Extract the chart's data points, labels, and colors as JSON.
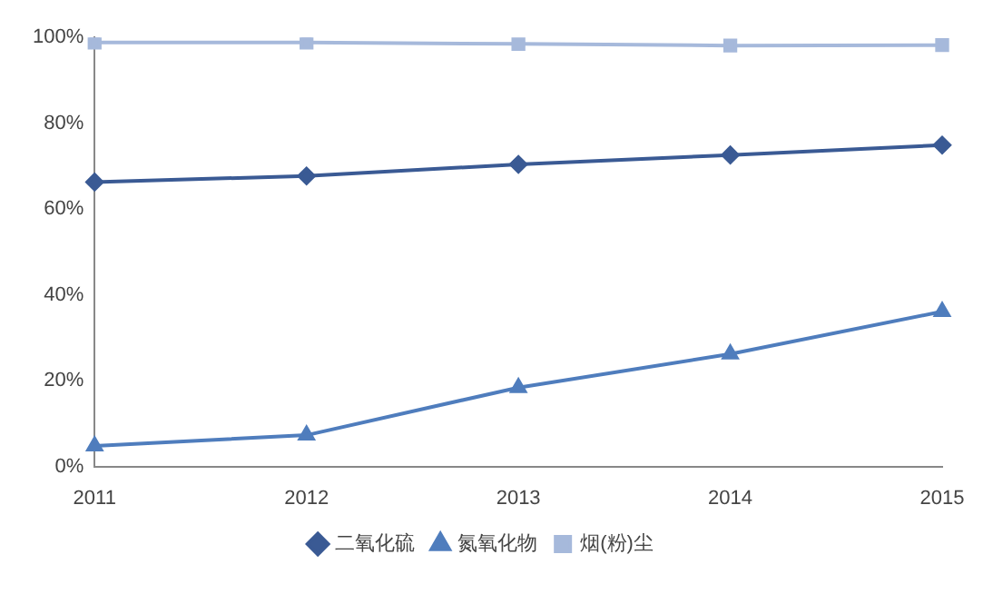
{
  "chart_data": {
    "type": "line",
    "categories": [
      "2011",
      "2012",
      "2013",
      "2014",
      "2015"
    ],
    "series": [
      {
        "name": "二氧化硫",
        "color": "#3a5a94",
        "marker": "diamond",
        "values": [
          66.3,
          67.7,
          70.4,
          72.6,
          74.9
        ]
      },
      {
        "name": "氮氧化物",
        "color": "#4f7dbd",
        "marker": "triangle",
        "values": [
          4.8,
          7.3,
          18.4,
          26.2,
          36.1
        ]
      },
      {
        "name": "烟(粉)尘",
        "color": "#a6b9db",
        "marker": "square",
        "values": [
          98.8,
          98.8,
          98.5,
          98.1,
          98.2
        ]
      }
    ],
    "ylim": [
      0,
      100
    ],
    "yticks": [
      {
        "value": 0,
        "label": "0%"
      },
      {
        "value": 20,
        "label": "20%"
      },
      {
        "value": 40,
        "label": "40%"
      },
      {
        "value": 60,
        "label": "60%"
      },
      {
        "value": 80,
        "label": "80%"
      },
      {
        "value": 100,
        "label": "100%"
      }
    ],
    "grid": false,
    "legend": "bottom"
  }
}
